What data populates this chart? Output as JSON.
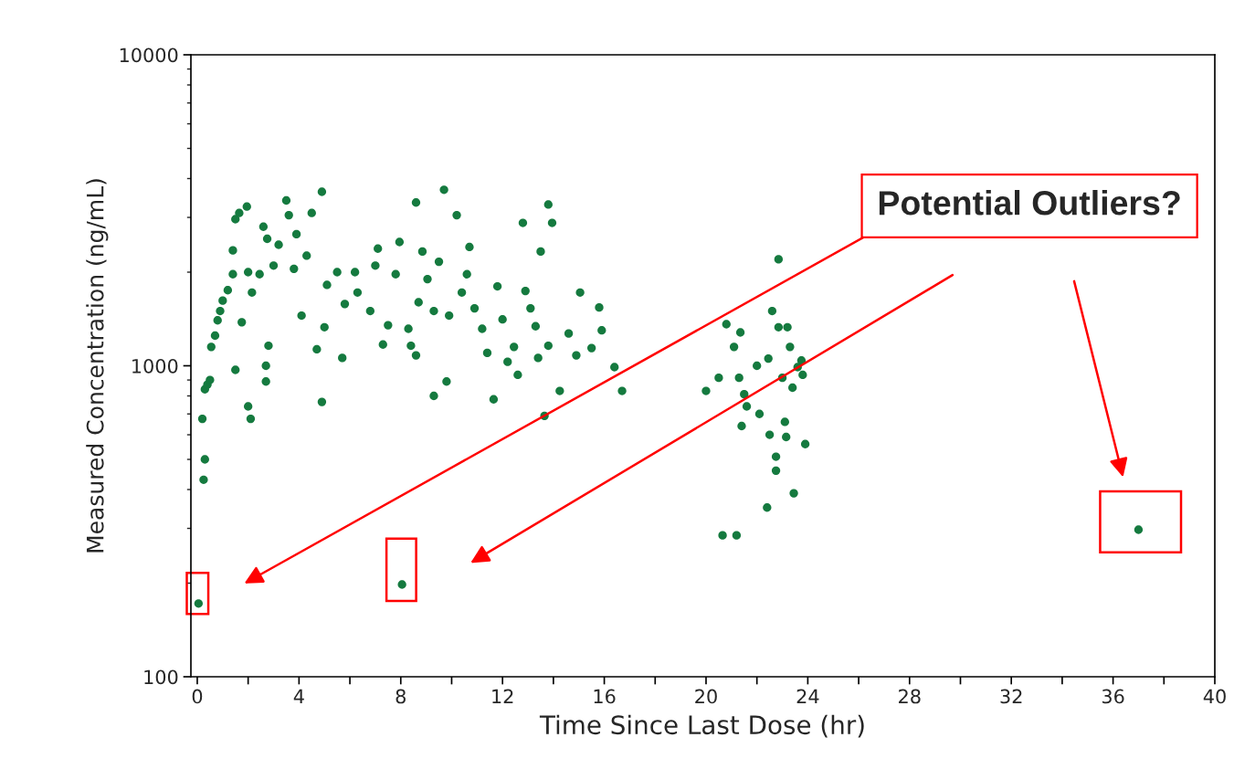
{
  "chart_data": {
    "type": "scatter",
    "xlabel": "Time Since Last Dose (hr)",
    "ylabel": "Measured Concentration (ng/mL)",
    "annotations": [
      "Potential Outliers?"
    ],
    "log": "y",
    "grid": false,
    "marker": "circle",
    "xlim": [
      -0.25,
      40
    ],
    "ylim": [
      100,
      10000
    ],
    "xticks": [
      0,
      {
        "value": 2,
        "label": null
      },
      4,
      {
        "value": 6,
        "label": null
      },
      8,
      {
        "value": 10,
        "label": null
      },
      12,
      {
        "value": 14,
        "label": null
      },
      16,
      {
        "value": 18,
        "label": null
      },
      20,
      {
        "value": 22,
        "label": null
      },
      24,
      {
        "value": 26,
        "label": null
      },
      28,
      {
        "value": 30,
        "label": null
      },
      32,
      {
        "value": 34,
        "label": null
      },
      36,
      {
        "value": 38,
        "label": null
      },
      40
    ],
    "yticks": [
      100,
      1000,
      10000
    ],
    "series": [
      {
        "color": "#157a3f",
        "x": [
          0.05,
          0.25,
          0.3,
          0.2,
          0.3,
          0.4,
          0.5,
          0.55,
          0.7,
          0.8,
          0.9,
          1.0,
          1.2,
          1.4,
          1.4,
          1.5,
          1.65,
          1.95,
          1.5,
          2.0,
          2.1,
          1.75,
          2.15,
          2.0,
          2.45,
          2.6,
          2.75,
          2.8,
          2.7,
          2.7,
          3.0,
          3.2,
          3.5,
          3.6,
          3.8,
          3.9,
          4.1,
          4.3,
          4.5,
          4.7,
          4.9,
          4.9,
          5.0,
          5.1,
          5.5,
          5.7,
          5.8,
          6.2,
          6.3,
          6.8,
          7.0,
          7.1,
          7.3,
          7.5,
          7.8,
          7.95,
          8.05,
          8.3,
          8.4,
          8.6,
          8.6,
          8.7,
          8.85,
          9.05,
          9.3,
          9.3,
          9.5,
          9.7,
          9.8,
          9.9,
          10.2,
          10.4,
          10.6,
          10.7,
          10.9,
          11.2,
          11.4,
          11.65,
          11.8,
          12.0,
          12.2,
          12.45,
          12.6,
          12.8,
          12.9,
          13.1,
          13.3,
          13.4,
          13.5,
          13.65,
          13.8,
          13.8,
          13.95,
          14.25,
          14.6,
          14.9,
          15.05,
          15.5,
          15.8,
          15.9,
          16.4,
          16.7,
          20.0,
          20.5,
          20.65,
          20.8,
          21.1,
          21.2,
          21.3,
          21.35,
          21.4,
          21.5,
          21.6,
          22.0,
          22.1,
          22.4,
          22.45,
          22.5,
          22.6,
          22.75,
          22.75,
          22.85,
          22.85,
          23.0,
          23.1,
          23.15,
          23.2,
          23.3,
          23.4,
          23.45,
          23.6,
          23.75,
          23.9,
          23.8,
          37.0
        ],
        "values": [
          172,
          430,
          500,
          675,
          840,
          870,
          900,
          1150,
          1250,
          1400,
          1500,
          1620,
          1750,
          1970,
          2350,
          2960,
          3100,
          3250,
          970,
          740,
          675,
          1380,
          1720,
          2000,
          1970,
          2800,
          2560,
          1160,
          1000,
          890,
          2100,
          2450,
          3400,
          3050,
          2050,
          2650,
          1450,
          2260,
          3100,
          1130,
          3627,
          765,
          1330,
          1820,
          2000,
          1060,
          1580,
          2000,
          1720,
          1500,
          2100,
          2380,
          1170,
          1350,
          1970,
          2500,
          198,
          1315,
          1160,
          1080,
          3350,
          1600,
          2330,
          1900,
          1500,
          800,
          2160,
          3680,
          890,
          1450,
          3050,
          1720,
          1970,
          2410,
          1530,
          1315,
          1100,
          780,
          1800,
          1410,
          1030,
          1150,
          935,
          2880,
          1740,
          1530,
          1340,
          1060,
          2330,
          690,
          3300,
          1160,
          2880,
          830,
          1270,
          1080,
          1720,
          1140,
          1540,
          1300,
          990,
          830,
          830,
          915,
          285,
          1360,
          1150,
          285,
          915,
          1280,
          640,
          810,
          740,
          1000,
          700,
          350,
          1055,
          600,
          1500,
          510,
          460,
          2200,
          1330,
          915,
          660,
          590,
          1330,
          1150,
          850,
          389,
          990,
          1040,
          560,
          935,
          297
        ]
      }
    ]
  }
}
